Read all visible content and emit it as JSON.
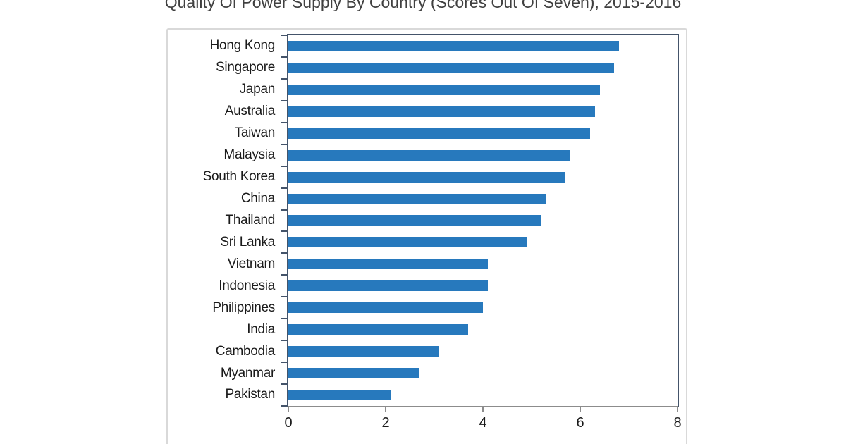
{
  "chart_data": {
    "type": "bar",
    "orientation": "horizontal",
    "title": "Quality Of Power Supply By Country (Scores Out Of Seven), 2015-2016",
    "categories": [
      "Hong Kong",
      "Singapore",
      "Japan",
      "Australia",
      "Taiwan",
      "Malaysia",
      "South Korea",
      "China",
      "Thailand",
      "Sri Lanka",
      "Vietnam",
      "Indonesia",
      "Philippines",
      "India",
      "Cambodia",
      "Myanmar",
      "Pakistan"
    ],
    "values": [
      6.8,
      6.7,
      6.4,
      6.3,
      6.2,
      5.8,
      5.7,
      5.3,
      5.2,
      4.9,
      4.1,
      4.1,
      4.0,
      3.7,
      3.1,
      2.7,
      2.1
    ],
    "xlabel": "",
    "ylabel": "",
    "xlim": [
      0,
      8
    ],
    "x_ticks": [
      0,
      2,
      4,
      6,
      8
    ],
    "grid": false,
    "legend": false,
    "colors": {
      "bar": "#2779BD",
      "plot_border": "#44546A",
      "axis_line": "#8C8C8C",
      "panel_border": "#D9D9D9",
      "title_text": "#404040",
      "label_text": "#1A1A1A",
      "background": "#FFFFFF"
    }
  }
}
